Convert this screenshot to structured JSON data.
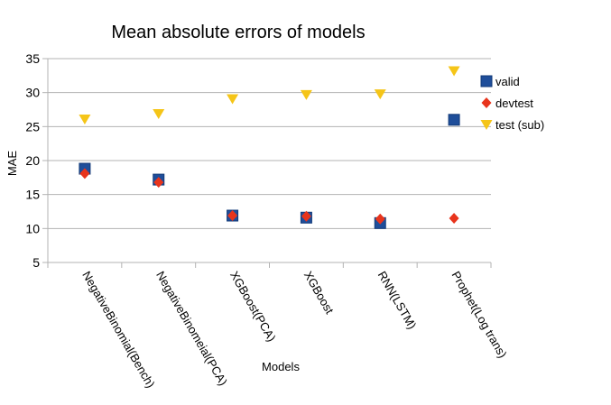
{
  "chart_data": {
    "type": "scatter",
    "title": "Mean absolute errors of models",
    "xlabel": "Models",
    "ylabel": "MAE",
    "ylim": [
      5,
      35
    ],
    "yticks": [
      5,
      10,
      15,
      20,
      25,
      30,
      35
    ],
    "grid": "horizontal",
    "legend_position": "right",
    "categories": [
      "NegativeBinomial(Bench)",
      "NegativeBinomeial(PCA)",
      "XGBoost(PCA)",
      "XGBoost",
      "RNN(LSTM)",
      "Prophet(Log trans)"
    ],
    "series": [
      {
        "name": "valid",
        "marker": "square",
        "color": "#1f4e9a",
        "values": [
          18.8,
          17.2,
          11.9,
          11.6,
          10.8,
          26.0
        ]
      },
      {
        "name": "devtest",
        "marker": "diamond",
        "color": "#e8341c",
        "values": [
          18.1,
          16.8,
          11.9,
          11.8,
          11.4,
          11.5
        ]
      },
      {
        "name": "test (sub)",
        "marker": "triangle-down",
        "color": "#f5c518",
        "values": [
          26.1,
          26.9,
          29.1,
          29.7,
          29.8,
          33.2
        ]
      }
    ]
  }
}
